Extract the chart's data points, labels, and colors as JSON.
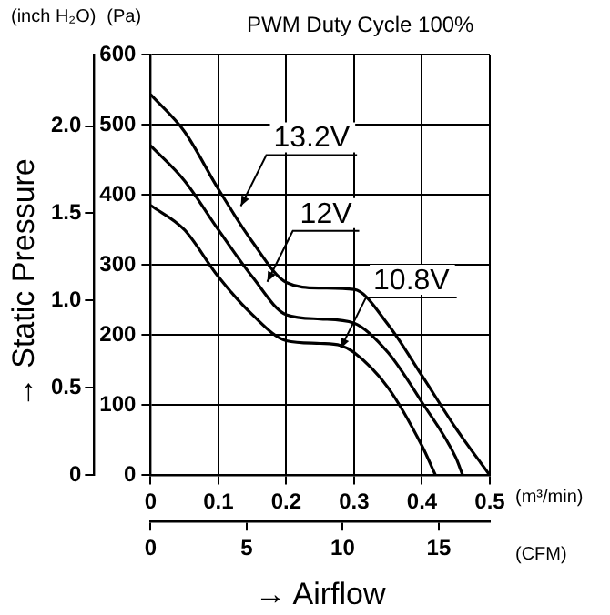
{
  "chart_data": {
    "type": "line",
    "title": "PWM Duty Cycle 100%",
    "xlabel": "→ Airflow",
    "y2label": "→ Static Pressure",
    "annotations": [
      "(inch H₂O)",
      "(Pa)",
      "(m³/min)",
      "(CFM)",
      {
        "text": "13.2V",
        "x": 0.133,
        "y": 384
      },
      {
        "text": "12V",
        "x": 0.172,
        "y": 276
      },
      {
        "text": "10.8V",
        "x": 0.28,
        "y": 181
      }
    ],
    "series": [
      {
        "color": "#000000",
        "x": [
          0,
          0.05,
          0.1,
          0.15,
          0.2,
          0.25,
          0.3,
          0.35,
          0.4,
          0.45,
          0.5
        ],
        "values": [
          543,
          490,
          408,
          333,
          275,
          267,
          265,
          215,
          142,
          67,
          0
        ]
      },
      {
        "color": "#000000",
        "x": [
          0,
          0.05,
          0.1,
          0.15,
          0.2,
          0.25,
          0.3,
          0.35,
          0.4,
          0.45,
          0.46
        ],
        "values": [
          470,
          420,
          350,
          283,
          229,
          223,
          217,
          175,
          104,
          25,
          0
        ]
      },
      {
        "color": "#000000",
        "x": [
          0,
          0.05,
          0.1,
          0.15,
          0.2,
          0.25,
          0.28,
          0.3,
          0.35,
          0.4,
          0.42
        ],
        "values": [
          385,
          350,
          283,
          229,
          192,
          188,
          185,
          175,
          125,
          42,
          0
        ]
      }
    ],
    "xlim": [
      0,
      0.5
    ],
    "xticks": [
      0,
      0.1,
      0.2,
      0.3,
      0.4,
      0.5
    ],
    "x2lim": [
      0,
      17.66
    ],
    "x2ticks": [
      0,
      5,
      10,
      15
    ],
    "ylim": [
      0,
      600
    ],
    "yticks": [
      0,
      100,
      200,
      300,
      400,
      500,
      600
    ],
    "y2lim": [
      0,
      2.409
    ],
    "y2ticks": [
      0,
      {
        "value": 0.5,
        "label": "0.5"
      },
      {
        "value": 1,
        "label": "1.0"
      },
      {
        "value": 1.5,
        "label": "1.5"
      },
      {
        "value": 2,
        "label": "2.0"
      }
    ],
    "grid": true,
    "legend": false,
    "marker": "none",
    "line_style": "solid"
  }
}
